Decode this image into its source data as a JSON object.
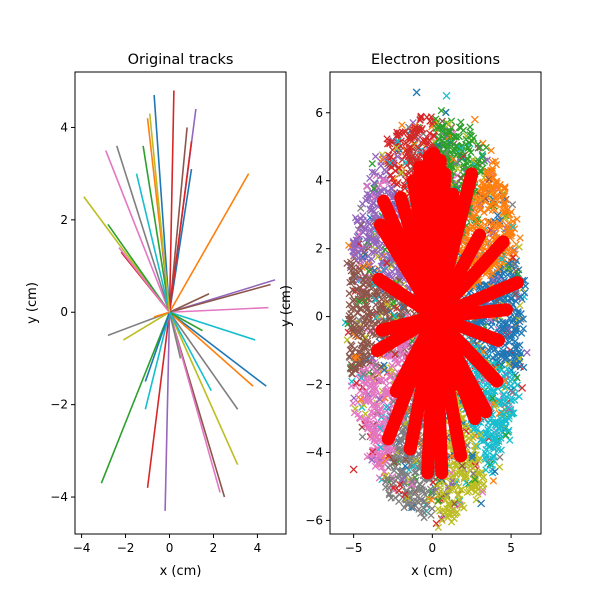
{
  "chart_data": [
    {
      "type": "line",
      "title": "Original tracks",
      "xlabel": "x (cm)",
      "ylabel": "y (cm)",
      "xlim": [
        -4.3,
        5.3
      ],
      "ylim": [
        -4.8,
        5.2
      ],
      "xticks": [
        -4,
        -2,
        0,
        2,
        4
      ],
      "yticks": [
        -4,
        -2,
        0,
        2,
        4
      ],
      "grid": false,
      "colors": [
        "#1f77b4",
        "#ff7f0e",
        "#2ca02c",
        "#d62728",
        "#9467bd",
        "#8c564b",
        "#e377c2",
        "#7f7f7f",
        "#bcbd22",
        "#17becf"
      ],
      "tracks": [
        {
          "start": [
            0.0,
            0.0
          ],
          "end": [
            -0.7,
            4.7
          ]
        },
        {
          "start": [
            0.0,
            0.0
          ],
          "end": [
            -1.0,
            4.2
          ]
        },
        {
          "start": [
            0.0,
            0.0
          ],
          "end": [
            -1.2,
            3.6
          ]
        },
        {
          "start": [
            0.0,
            0.0
          ],
          "end": [
            0.2,
            4.8
          ]
        },
        {
          "start": [
            0.0,
            0.0
          ],
          "end": [
            1.2,
            4.4
          ]
        },
        {
          "start": [
            0.0,
            0.0
          ],
          "end": [
            0.8,
            4.0
          ]
        },
        {
          "start": [
            0.0,
            0.0
          ],
          "end": [
            -2.9,
            3.5
          ]
        },
        {
          "start": [
            0.0,
            0.0
          ],
          "end": [
            -2.4,
            3.6
          ]
        },
        {
          "start": [
            0.0,
            0.0
          ],
          "end": [
            -3.9,
            2.5
          ]
        },
        {
          "start": [
            0.0,
            0.0
          ],
          "end": [
            -1.5,
            3.0
          ]
        },
        {
          "start": [
            0.0,
            0.0
          ],
          "end": [
            1.0,
            3.1
          ]
        },
        {
          "start": [
            0.0,
            0.0
          ],
          "end": [
            3.6,
            3.0
          ]
        },
        {
          "start": [
            0.0,
            0.0
          ],
          "end": [
            -2.8,
            1.9
          ]
        },
        {
          "start": [
            0.0,
            0.0
          ],
          "end": [
            -2.2,
            1.3
          ]
        },
        {
          "start": [
            0.0,
            0.0
          ],
          "end": [
            4.8,
            0.7
          ]
        },
        {
          "start": [
            0.0,
            0.0
          ],
          "end": [
            4.6,
            0.6
          ]
        },
        {
          "start": [
            0.0,
            0.0
          ],
          "end": [
            4.5,
            0.1
          ]
        },
        {
          "start": [
            0.0,
            0.0
          ],
          "end": [
            -2.8,
            -0.5
          ]
        },
        {
          "start": [
            0.0,
            0.0
          ],
          "end": [
            -2.1,
            -0.6
          ]
        },
        {
          "start": [
            0.0,
            0.0
          ],
          "end": [
            3.9,
            -0.6
          ]
        },
        {
          "start": [
            0.0,
            0.0
          ],
          "end": [
            4.4,
            -1.6
          ]
        },
        {
          "start": [
            0.0,
            0.0
          ],
          "end": [
            3.8,
            -1.6
          ]
        },
        {
          "start": [
            0.0,
            0.0
          ],
          "end": [
            -3.1,
            -3.7
          ]
        },
        {
          "start": [
            0.0,
            0.0
          ],
          "end": [
            -1.0,
            -3.8
          ]
        },
        {
          "start": [
            0.0,
            0.0
          ],
          "end": [
            -0.2,
            -4.3
          ]
        },
        {
          "start": [
            0.0,
            0.0
          ],
          "end": [
            2.5,
            -4.0
          ]
        },
        {
          "start": [
            0.0,
            0.0
          ],
          "end": [
            2.3,
            -3.9
          ]
        },
        {
          "start": [
            0.0,
            0.0
          ],
          "end": [
            3.1,
            -2.1
          ]
        },
        {
          "start": [
            0.0,
            0.0
          ],
          "end": [
            3.1,
            -3.3
          ]
        },
        {
          "start": [
            0.0,
            0.0
          ],
          "end": [
            -1.1,
            -2.1
          ]
        },
        {
          "start": [
            0.0,
            0.0
          ],
          "end": [
            -1.1,
            -1.5
          ]
        },
        {
          "start": [
            0.0,
            0.0
          ],
          "end": [
            -0.7,
            -0.1
          ]
        },
        {
          "start": [
            0.0,
            0.0
          ],
          "end": [
            1.5,
            -0.4
          ]
        },
        {
          "start": [
            0.0,
            0.0
          ],
          "end": [
            1.0,
            3.7
          ]
        },
        {
          "start": [
            0.0,
            0.0
          ],
          "end": [
            -0.3,
            1.3
          ]
        },
        {
          "start": [
            0.0,
            0.0
          ],
          "end": [
            1.8,
            0.4
          ]
        },
        {
          "start": [
            0.0,
            0.0
          ],
          "end": [
            -2.3,
            1.4
          ]
        },
        {
          "start": [
            0.0,
            0.0
          ],
          "end": [
            0.5,
            -1.0
          ]
        },
        {
          "start": [
            0.0,
            0.0
          ],
          "end": [
            -0.9,
            4.3
          ]
        },
        {
          "start": [
            0.0,
            0.0
          ],
          "end": [
            1.9,
            -1.7
          ]
        }
      ]
    },
    {
      "type": "scatter",
      "title": "Electron positions",
      "xlabel": "x (cm)",
      "ylabel": "y (cm)",
      "xlim": [
        -6.5,
        6.9
      ],
      "ylim": [
        -6.4,
        7.2
      ],
      "xticks": [
        -5,
        0,
        5
      ],
      "yticks": [
        -6,
        -4,
        -2,
        0,
        2,
        4,
        6
      ],
      "grid": false,
      "marker": "x",
      "colors": [
        "#1f77b4",
        "#ff7f0e",
        "#2ca02c",
        "#d62728",
        "#9467bd",
        "#8c564b",
        "#e377c2",
        "#7f7f7f",
        "#bcbd22",
        "#17becf"
      ],
      "cloud": {
        "center": [
          0.2,
          0.0
        ],
        "radius_x": 5.8,
        "radius_y": 6.1
      },
      "outliers": [
        {
          "x": -1.0,
          "y": 6.6,
          "color": "#1f77b4"
        },
        {
          "x": 0.9,
          "y": 6.5,
          "color": "#17becf"
        },
        {
          "x": 2.7,
          "y": 5.8,
          "color": "#ff7f0e"
        },
        {
          "x": 3.1,
          "y": -5.5,
          "color": "#1f77b4"
        },
        {
          "x": 5.7,
          "y": -2.1,
          "color": "#d62728"
        },
        {
          "x": -5.0,
          "y": -4.5,
          "color": "#d62728"
        }
      ],
      "overlay_color": "#ff0000",
      "overlay_rays": [
        {
          "end": [
            -0.4,
            4.7
          ]
        },
        {
          "end": [
            -0.1,
            4.8
          ]
        },
        {
          "end": [
            0.3,
            4.6
          ]
        },
        {
          "end": [
            -1.0,
            4.4
          ]
        },
        {
          "end": [
            -1.4,
            4.0
          ]
        },
        {
          "end": [
            0.6,
            4.2
          ]
        },
        {
          "end": [
            -2.2,
            3.5
          ]
        },
        {
          "end": [
            -3.3,
            3.4
          ]
        },
        {
          "end": [
            -3.5,
            2.7
          ]
        },
        {
          "end": [
            -2.6,
            2.4
          ]
        },
        {
          "end": [
            1.1,
            3.6
          ]
        },
        {
          "end": [
            2.3,
            4.2
          ]
        },
        {
          "end": [
            2.8,
            2.4
          ]
        },
        {
          "end": [
            4.3,
            2.2
          ]
        },
        {
          "end": [
            5.2,
            1.0
          ]
        },
        {
          "end": [
            4.5,
            0.2
          ]
        },
        {
          "end": [
            -3.6,
            1.1
          ]
        },
        {
          "end": [
            -3.4,
            -0.4
          ]
        },
        {
          "end": [
            -3.7,
            -1.0
          ]
        },
        {
          "end": [
            4.0,
            -0.7
          ]
        },
        {
          "end": [
            3.9,
            -1.9
          ]
        },
        {
          "end": [
            3.2,
            -2.8
          ]
        },
        {
          "end": [
            -3.0,
            -3.6
          ]
        },
        {
          "end": [
            -1.6,
            -3.9
          ]
        },
        {
          "end": [
            -0.5,
            -4.6
          ]
        },
        {
          "end": [
            0.4,
            -4.6
          ]
        },
        {
          "end": [
            1.6,
            -4.1
          ]
        },
        {
          "end": [
            2.5,
            -3.0
          ]
        },
        {
          "end": [
            -2.5,
            -2.2
          ]
        },
        {
          "end": [
            1.2,
            -2.0
          ]
        }
      ]
    }
  ]
}
